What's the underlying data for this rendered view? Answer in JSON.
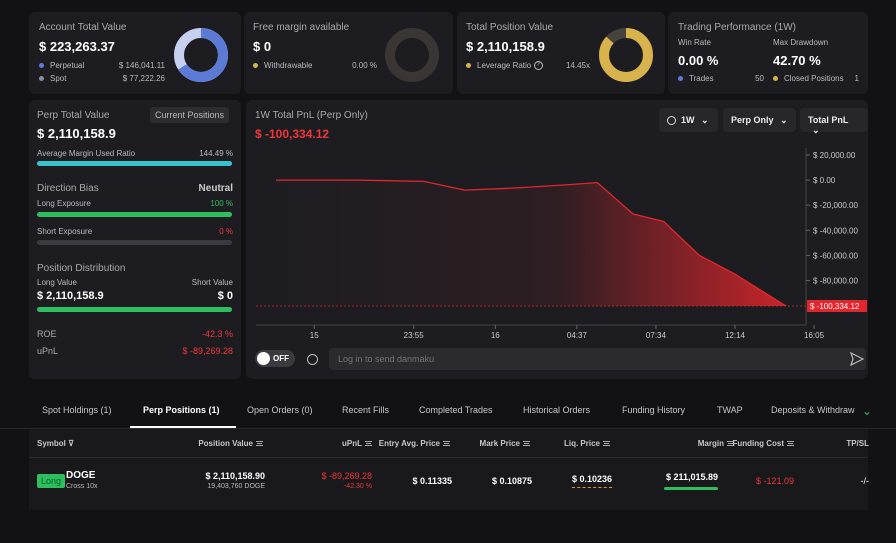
{
  "account": {
    "title": "Account Total Value",
    "value": "$ 223,263.37",
    "perp_label": "Perpetual",
    "perp_value": "$ 146,041.11",
    "spot_label": "Spot",
    "spot_value": "$ 77,222.26"
  },
  "margin": {
    "title": "Free margin available",
    "value": "$ 0",
    "withdraw_label": "Withdrawable",
    "withdraw_value": "0.00 %"
  },
  "position": {
    "title": "Total Position Value",
    "value": "$ 2,110,158.9",
    "lev_label": "Leverage Ratio",
    "lev_value": "14.45x"
  },
  "perf": {
    "title": "Trading Performance (1W)",
    "win_label": "Win Rate",
    "win_value": "0.00 %",
    "dd_label": "Max Drawdown",
    "dd_value": "42.70 %",
    "trades_label": "Trades",
    "trades_value": "50",
    "closed_label": "Closed Positions",
    "closed_value": "1"
  },
  "perp": {
    "title": "Perp Total Value",
    "tag": "Current Positions",
    "value": "$ 2,110,158.9",
    "mur_label": "Average Margin Used Ratio",
    "mur_value": "144.49 %",
    "mur_pct": 100,
    "bias_label": "Direction Bias",
    "bias_value": "Neutral",
    "long_label": "Long Exposure",
    "long_value": "100 %",
    "short_label": "Short Exposure",
    "short_value": "0 %",
    "dist_label": "Position Distribution",
    "lv_label": "Long Value",
    "sv_label": "Short Value",
    "lv_value": "$ 2,110,158.9",
    "sv_value": "$ 0",
    "roe_label": "ROE",
    "roe_value": "-42.3 %",
    "upnl_label": "uPnL",
    "upnl_value": "$ -89,269.28"
  },
  "pnl": {
    "title": "1W Total PnL (Perp Only)",
    "value": "$ -100,334.12",
    "range": "1W",
    "filter": "Perp Only",
    "mode": "Total PnL",
    "off": "OFF",
    "placeholder": "Log in to send danmaku"
  },
  "chart_data": {
    "type": "area",
    "x": [
      "15",
      "23:55",
      "16",
      "04:37",
      "07:34",
      "12:14",
      "16:05"
    ],
    "y_ticks": [
      "$ 20,000.00",
      "$ 0.00",
      "$ -20,000.00",
      "$ -40,000.00",
      "$ -60,000.00",
      "$ -80,000.00"
    ],
    "ylim": [
      -100334.12,
      20000
    ],
    "points": [
      [
        0,
        0
      ],
      [
        0.16,
        0
      ],
      [
        0.29,
        -1000
      ],
      [
        0.37,
        -8000
      ],
      [
        0.46,
        -6500
      ],
      [
        0.56,
        -4000
      ],
      [
        0.63,
        -2000
      ],
      [
        0.7,
        -27000
      ],
      [
        0.76,
        -33000
      ],
      [
        0.83,
        -60000
      ],
      [
        0.9,
        -75000
      ],
      [
        1,
        -100334.12
      ]
    ],
    "last_label": "$ -100,334.12"
  },
  "tabs": [
    "Spot Holdings (1)",
    "Perp Positions (1)",
    "Open Orders (0)",
    "Recent Fills",
    "Completed Trades",
    "Historical Orders",
    "Funding History",
    "TWAP",
    "Deposits & Withdraw"
  ],
  "cols": [
    "Symbol",
    "Position Value",
    "uPnL",
    "Entry Avg. Price",
    "Mark Price",
    "Liq. Price",
    "Margin",
    "Funding Cost",
    "TP/SL"
  ],
  "row": {
    "side": "Long",
    "symbol": "DOGE",
    "mode": "Cross 10x",
    "pv": "$ 2,110,158.90",
    "qty": "19,403,760 DOGE",
    "upnl": "$ -89,269.28",
    "upnl_pct": "-42.30 %",
    "entry": "$ 0.11335",
    "mark": "$ 0.10875",
    "liq": "$ 0.10236",
    "margin": "$ 211,015.89",
    "funding": "$ -121.09",
    "tpsl": "-/-"
  },
  "colors": {
    "blue": "#5b7bd6",
    "gold": "#d8b24c",
    "red": "#e3262d",
    "green": "#2ebd5f",
    "cyan": "#36c3cf"
  }
}
